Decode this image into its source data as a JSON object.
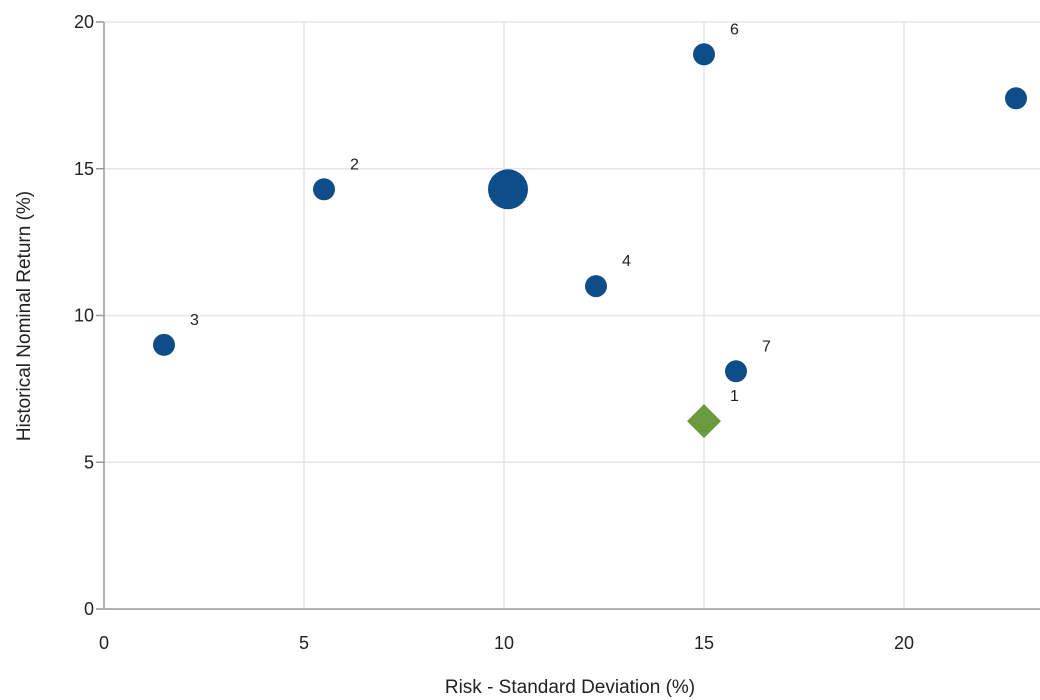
{
  "chart_data": {
    "type": "scatter",
    "title": "",
    "xlabel": "Risk - Standard Deviation (%)",
    "ylabel": "Historical Nominal Return (%)",
    "xlim": [
      0,
      23.4
    ],
    "ylim": [
      0,
      20
    ],
    "x_ticks": [
      0,
      5,
      10,
      15,
      20
    ],
    "y_ticks": [
      0,
      5,
      10,
      15,
      20
    ],
    "grid": true,
    "points": [
      {
        "label": "3",
        "x": 1.5,
        "y": 9.0,
        "shape": "circle",
        "size": "medium",
        "color": "#0f4c8a"
      },
      {
        "label": "2",
        "x": 5.5,
        "y": 14.3,
        "shape": "circle",
        "size": "medium",
        "color": "#0f4c8a"
      },
      {
        "label": "",
        "x": 10.1,
        "y": 14.3,
        "shape": "circle",
        "size": "large",
        "color": "#0f4c8a"
      },
      {
        "label": "4",
        "x": 12.3,
        "y": 11.0,
        "shape": "circle",
        "size": "medium",
        "color": "#0f4c8a"
      },
      {
        "label": "6",
        "x": 15.0,
        "y": 18.9,
        "shape": "circle",
        "size": "medium",
        "color": "#0f4c8a"
      },
      {
        "label": "7",
        "x": 15.8,
        "y": 8.1,
        "shape": "circle",
        "size": "medium",
        "color": "#0f4c8a"
      },
      {
        "label": "1",
        "x": 15.0,
        "y": 6.4,
        "shape": "diamond",
        "size": "medium",
        "color": "#6a9a3e"
      },
      {
        "label": "",
        "x": 22.8,
        "y": 17.4,
        "shape": "circle",
        "size": "medium",
        "color": "#0f4c8a"
      }
    ],
    "colors": {
      "grid": "#e6e6e6",
      "axis": "#999999"
    }
  }
}
